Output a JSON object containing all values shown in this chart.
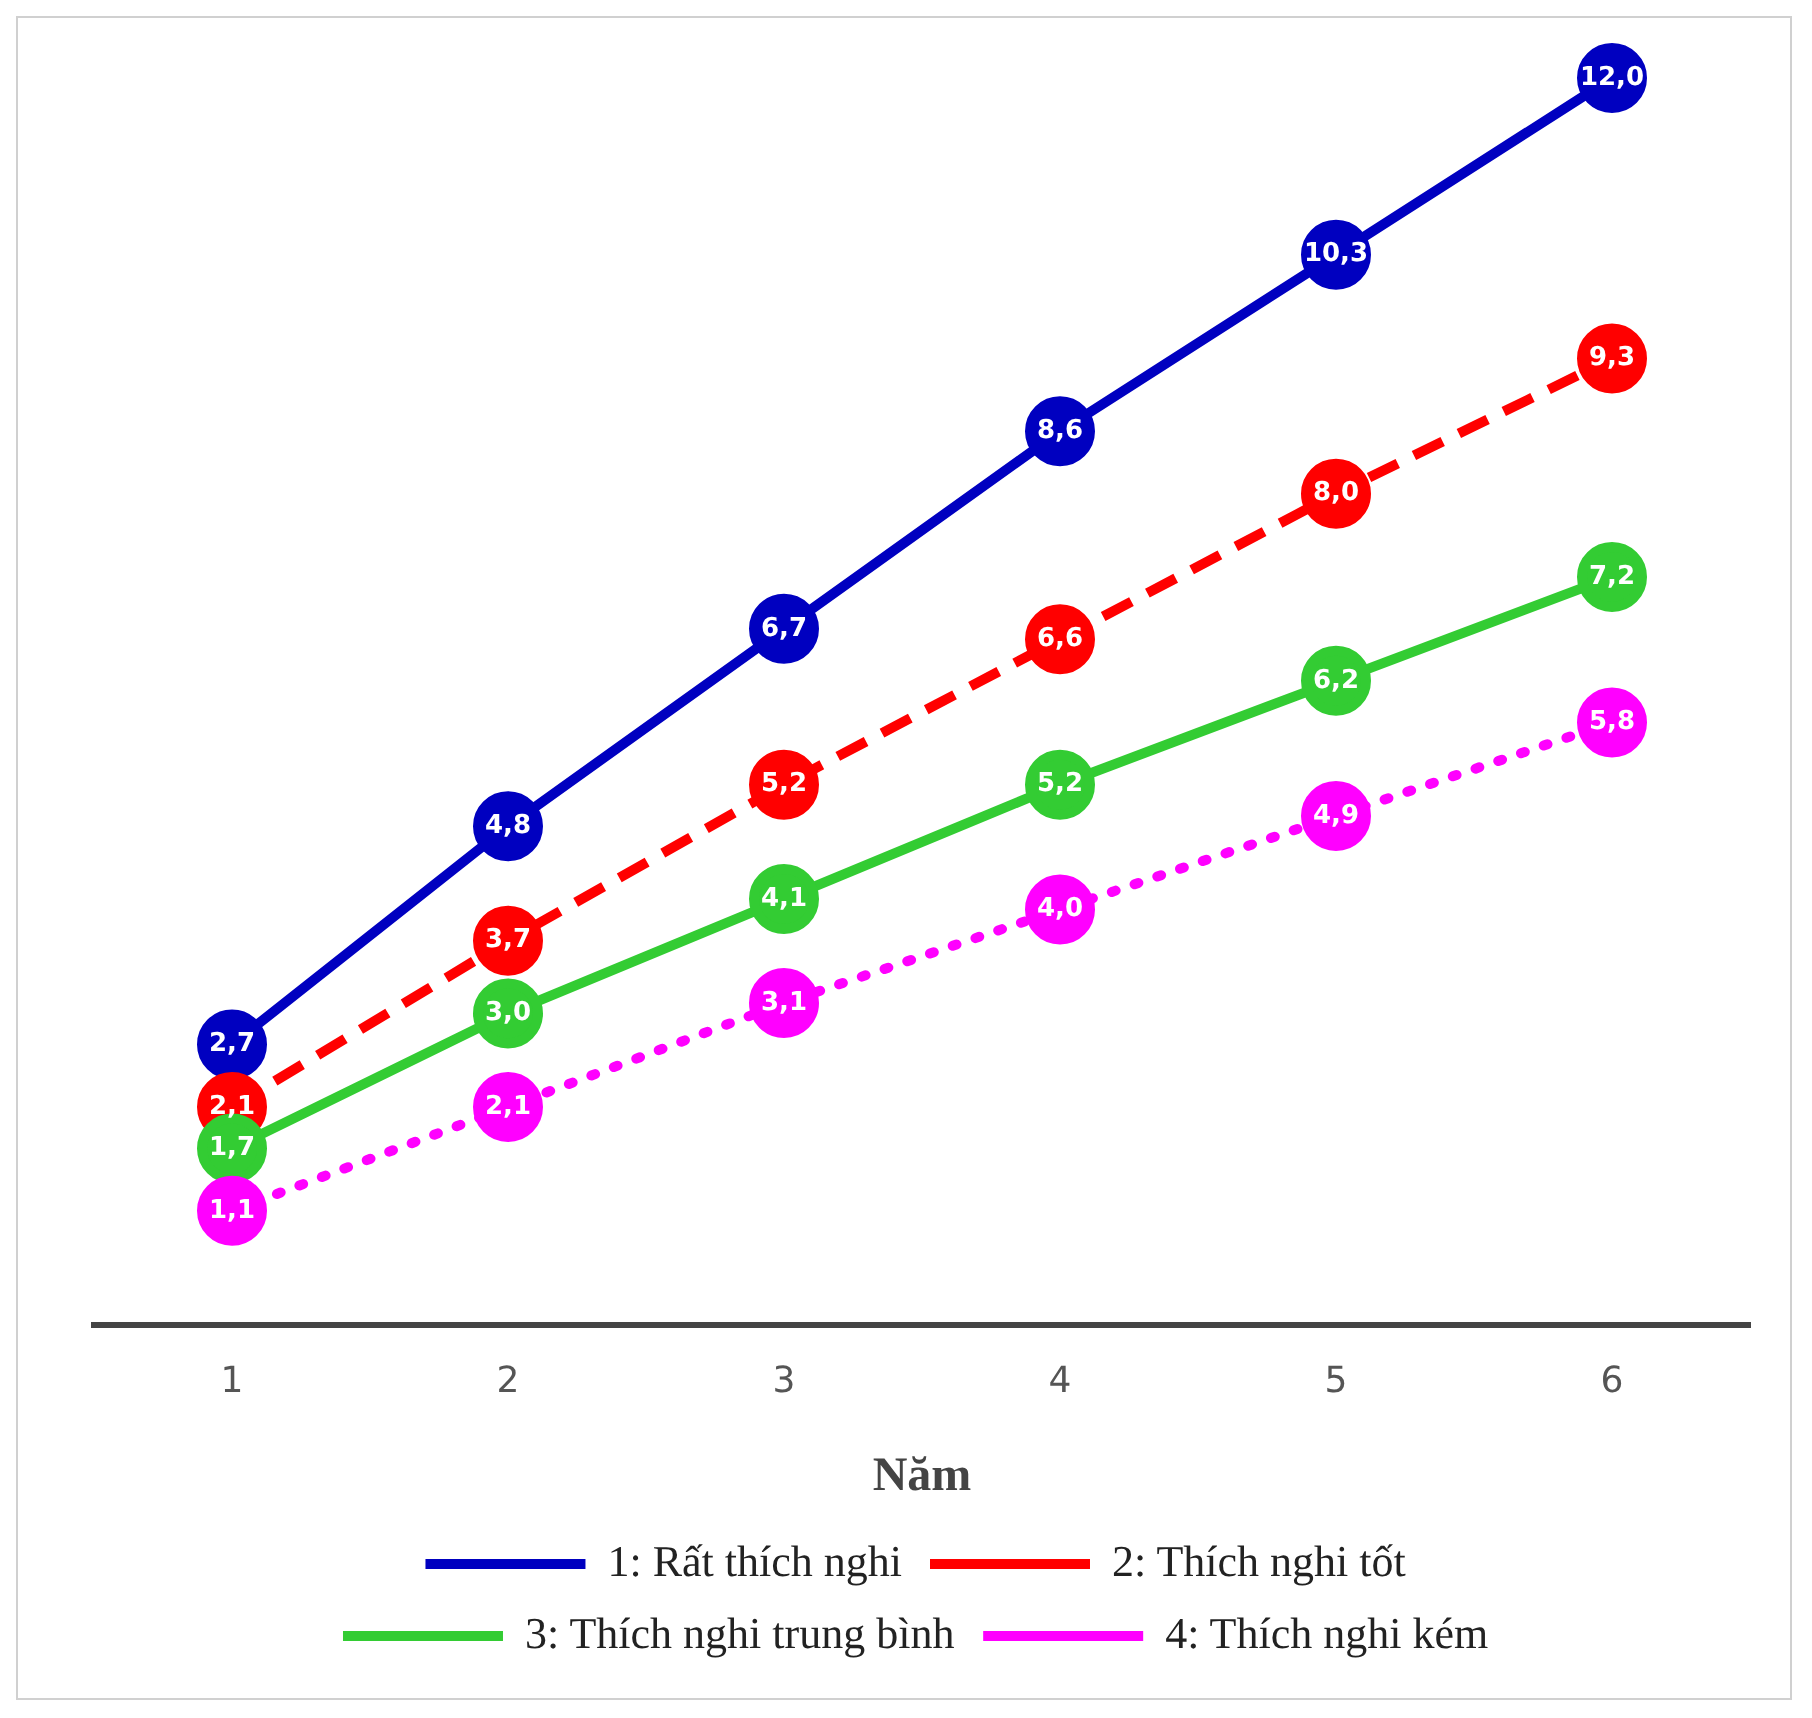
{
  "chart_data": {
    "type": "line",
    "xlabel": "Năm",
    "categories": [
      "1",
      "2",
      "3",
      "4",
      "5",
      "6"
    ],
    "tick_labels": "x",
    "grid": false,
    "legend": "bottom",
    "marker": "circle",
    "series": [
      {
        "name": "1: Rất thích nghi",
        "color": "#0000c0",
        "line_style": "solid",
        "values": [
          2.7,
          4.8,
          6.7,
          8.6,
          10.3,
          12.0
        ],
        "value_labels": [
          "2,7",
          "4,8",
          "6,7",
          "8,6",
          "10,3",
          "12,0"
        ]
      },
      {
        "name": "2: Thích nghi tốt",
        "color": "#ff0000",
        "line_style": "dashed",
        "values": [
          2.1,
          3.7,
          5.2,
          6.6,
          8.0,
          9.3
        ],
        "value_labels": [
          "2,1",
          "3,7",
          "5,2",
          "6,6",
          "8,0",
          "9,3"
        ]
      },
      {
        "name": "3: Thích nghi trung bình",
        "color": "#33cc33",
        "line_style": "solid",
        "values": [
          1.7,
          3.0,
          4.1,
          5.2,
          6.2,
          7.2
        ],
        "value_labels": [
          "1,7",
          "3,0",
          "4,1",
          "5,2",
          "6,2",
          "7,2"
        ]
      },
      {
        "name": "4: Thích nghi kém",
        "color": "#ff00ff",
        "line_style": "dotted",
        "values": [
          1.1,
          2.1,
          3.1,
          4.0,
          4.9,
          5.8
        ],
        "value_labels": [
          "1,1",
          "2,1",
          "3,1",
          "4,0",
          "4,9",
          "5,8"
        ]
      }
    ]
  }
}
